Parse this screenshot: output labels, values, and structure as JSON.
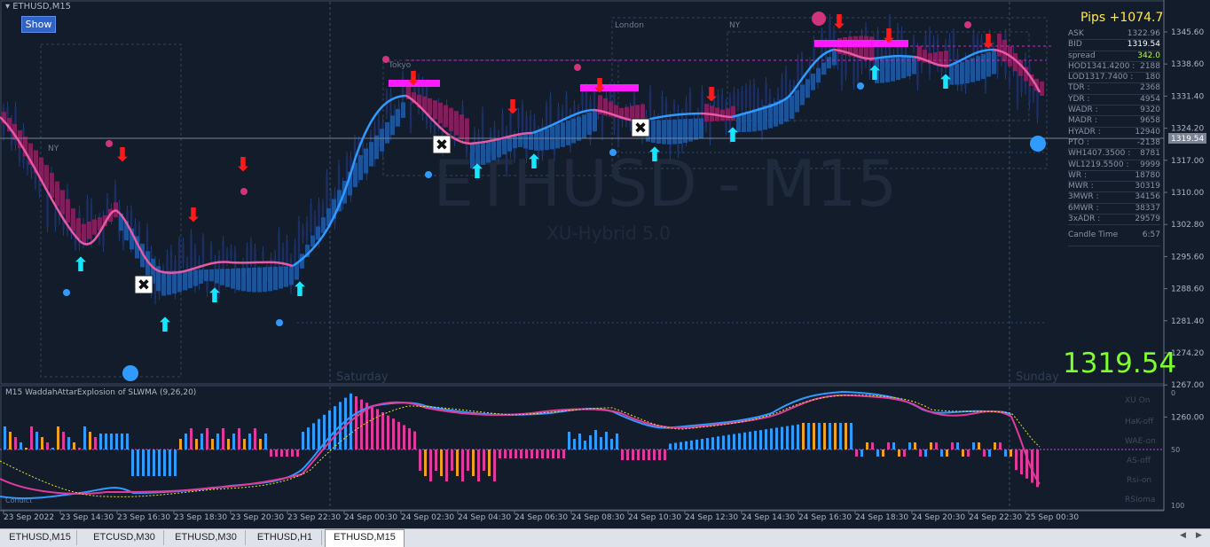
{
  "chart": {
    "title": "ETHUSD,M15",
    "show_button": "Show",
    "watermark": "ETHUSD - M15",
    "subwatermark": "XU-Hybrid 5.0",
    "sessions": {
      "ny1": "NY",
      "tokyo": "Tokyo",
      "london": "London",
      "ny2": "NY"
    },
    "day_labels": [
      "Saturday",
      "Sunday"
    ],
    "price_ticks": [
      "1345.60",
      "1338.60",
      "1331.40",
      "1324.20",
      "1317.00",
      "1310.00",
      "1302.80",
      "1295.60",
      "1288.60",
      "1281.40",
      "1274.20",
      "1267.00",
      "1260.00"
    ],
    "current_price_tag": "1319.54",
    "time_ticks": [
      "23 Sep 2022",
      "23 Sep 14:30",
      "23 Sep 16:30",
      "23 Sep 18:30",
      "23 Sep 20:30",
      "23 Sep 22:30",
      "24 Sep 00:30",
      "24 Sep 02:30",
      "24 Sep 04:30",
      "24 Sep 06:30",
      "24 Sep 08:30",
      "24 Sep 10:30",
      "24 Sep 12:30",
      "24 Sep 14:30",
      "24 Sep 16:30",
      "24 Sep 18:30",
      "24 Sep 20:30",
      "24 Sep 22:30",
      "25 Sep 00:30"
    ]
  },
  "info_panel": {
    "pips": "Pips +1074.7",
    "rows": [
      {
        "label": "ASK",
        "value": "1322.96",
        "color": "#8a94a6"
      },
      {
        "label": "BID",
        "value": "1319.54",
        "color": "#ffffff"
      },
      {
        "label": "spread",
        "value": "342.0",
        "color": "#b6ff3a"
      },
      {
        "label": "HOD1341.4200 :",
        "value": "2188",
        "color": "#8a94a6"
      },
      {
        "label": "LOD1317.7400 :",
        "value": "180",
        "color": "#8a94a6"
      },
      {
        "label": "TDR :",
        "value": "2368",
        "color": "#8a94a6"
      },
      {
        "label": "YDR :",
        "value": "4954",
        "color": "#8a94a6"
      },
      {
        "label": "WADR :",
        "value": "9320",
        "color": "#8a94a6"
      },
      {
        "label": "MADR :",
        "value": "9658",
        "color": "#8a94a6"
      },
      {
        "label": "HYADR :",
        "value": "12940",
        "color": "#8a94a6"
      },
      {
        "label": "PTO :",
        "value": "-2138",
        "color": "#8a94a6"
      },
      {
        "label": "WH1407.3500 :",
        "value": "8781",
        "color": "#8a94a6"
      },
      {
        "label": "WL1219.5500 :",
        "value": "9999",
        "color": "#8a94a6"
      },
      {
        "label": "WR :",
        "value": "18780",
        "color": "#8a94a6"
      },
      {
        "label": "MWR :",
        "value": "30319",
        "color": "#8a94a6"
      },
      {
        "label": "3MWR :",
        "value": "34156",
        "color": "#8a94a6"
      },
      {
        "label": "6MWR :",
        "value": "38337",
        "color": "#8a94a6"
      },
      {
        "label": "3xADR :",
        "value": "29579",
        "color": "#8a94a6"
      },
      {
        "label": "Candle Time",
        "value": "6:57",
        "color": "#8a94a6"
      }
    ],
    "big_price": "1319.54"
  },
  "indicator": {
    "title": "M15 WaddahAttarExplosion of SLWMA (9,26,20)",
    "labels": [
      "XU On",
      "HaK-off",
      "WAE-on",
      "AS-off",
      "Rsi-on",
      "RSIoma"
    ],
    "scale": [
      "0",
      "50",
      "100"
    ],
    "corner_label": "Condict"
  },
  "tabs": [
    {
      "label": "ETHUSD,M15",
      "active": false
    },
    {
      "label": "ETCUSD,M30",
      "active": false
    },
    {
      "label": "ETHUSD,M30",
      "active": false
    },
    {
      "label": "ETHUSD,H1",
      "active": false
    },
    {
      "label": "ETHUSD,M15",
      "active": true
    }
  ],
  "colors": {
    "up": "#2f9bff",
    "down": "#e0457f",
    "up_arrow": "#18e5ff",
    "down_arrow": "#ff1a1a",
    "magenta": "#ff1aff",
    "price": "#7cff2a"
  }
}
